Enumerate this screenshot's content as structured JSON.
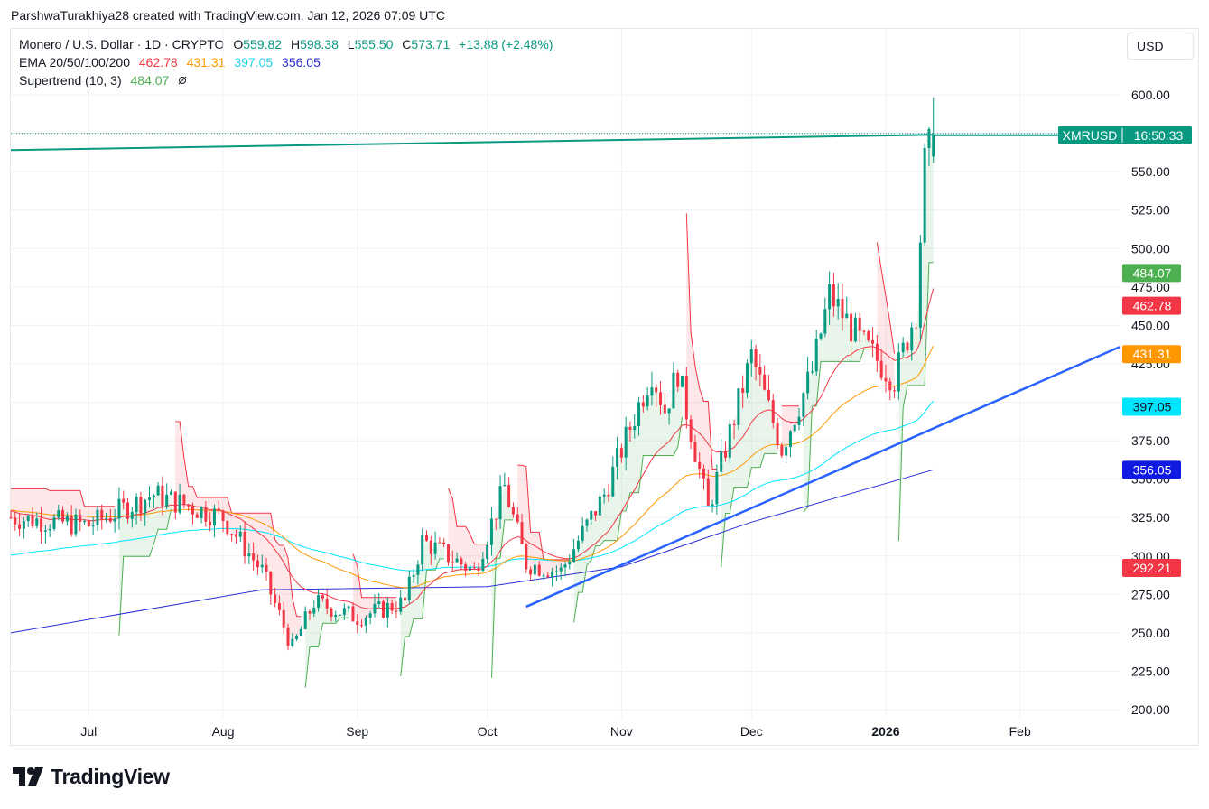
{
  "caption": "ParshwaTurakhiya28 created with TradingView.com, Jan 12, 2026 07:09 UTC",
  "currency_button": "USD",
  "legend": {
    "symbol": "Monero / U.S. Dollar · 1D · CRYPTO",
    "o_label": "O",
    "o_value": "559.82",
    "h_label": "H",
    "h_value": "598.38",
    "l_label": "L",
    "l_value": "555.50",
    "c_label": "C",
    "c_value": "573.71",
    "change": "+13.88 (+2.48%)",
    "ema_label": "EMA 20/50/100/200",
    "ema20": "462.78",
    "ema50": "431.31",
    "ema100": "397.05",
    "ema200": "356.05",
    "supertrend_label": "Supertrend (10, 3)",
    "supertrend_value": "484.07",
    "supertrend_icon": "hidden-eye-icon"
  },
  "brand": {
    "name": "TradingView",
    "icon": "tradingview-logo-icon"
  },
  "colors": {
    "up": "#089981",
    "down": "#f23645",
    "ema20": "#f23645",
    "ema50": "#ff9800",
    "ema100": "#00e5ff",
    "ema200": "#2a2ed8",
    "supertrend_up": "#4caf50",
    "supertrend_down": "#f23645",
    "trendline": "#2962ff",
    "price_line": "#089981"
  },
  "chart_data": {
    "type": "candlestick",
    "symbol": "XMRUSD",
    "price_tag": {
      "symbol": "XMRUSD",
      "countdown": "16:50:33"
    },
    "x_ticks": [
      "Jul",
      "Aug",
      "Sep",
      "Oct",
      "Nov",
      "Dec",
      "2026",
      "Feb"
    ],
    "y_ticks": [
      "200.00",
      "225.00",
      "250.00",
      "275.00",
      "300.00",
      "325.00",
      "350.00",
      "375.00",
      "400.00",
      "425.00",
      "450.00",
      "475.00",
      "500.00",
      "525.00",
      "550.00",
      "575.00",
      "600.00"
    ],
    "ylim": [
      200,
      600
    ],
    "x_range": [
      "2025-06-13",
      "2026-02-24"
    ],
    "last_date": "2026-01-12",
    "last_ohlc": {
      "open": 559.82,
      "high": 598.38,
      "low": 555.5,
      "close": 573.71
    },
    "badges": [
      {
        "label": "484.07",
        "value": 484.07,
        "color": "#4caf50"
      },
      {
        "label": "462.78",
        "value": 462.78,
        "color": "#f23645"
      },
      {
        "label": "431.31",
        "value": 431.31,
        "color": "#ff9800"
      },
      {
        "label": "397.05",
        "value": 397.05,
        "color": "#00e5ff"
      },
      {
        "label": "356.05",
        "value": 356.05,
        "color": "#0f1be0"
      },
      {
        "label": "292.21",
        "value": 292.21,
        "color": "#f23645"
      }
    ],
    "key_closes": [
      {
        "date": "2025-06-13",
        "value": 325
      },
      {
        "date": "2025-07-01",
        "value": 320
      },
      {
        "date": "2025-07-16",
        "value": 340
      },
      {
        "date": "2025-08-01",
        "value": 325
      },
      {
        "date": "2025-08-10",
        "value": 290
      },
      {
        "date": "2025-08-17",
        "value": 240
      },
      {
        "date": "2025-08-22",
        "value": 270
      },
      {
        "date": "2025-09-01",
        "value": 260
      },
      {
        "date": "2025-09-12",
        "value": 270
      },
      {
        "date": "2025-09-16",
        "value": 310
      },
      {
        "date": "2025-09-28",
        "value": 290
      },
      {
        "date": "2025-10-05",
        "value": 345
      },
      {
        "date": "2025-10-10",
        "value": 295
      },
      {
        "date": "2025-10-18",
        "value": 290
      },
      {
        "date": "2025-10-28",
        "value": 340
      },
      {
        "date": "2025-11-08",
        "value": 420
      },
      {
        "date": "2025-11-11",
        "value": 395
      },
      {
        "date": "2025-11-14",
        "value": 420
      },
      {
        "date": "2025-11-21",
        "value": 330
      },
      {
        "date": "2025-12-01",
        "value": 430
      },
      {
        "date": "2025-12-08",
        "value": 370
      },
      {
        "date": "2025-12-15",
        "value": 420
      },
      {
        "date": "2025-12-19",
        "value": 470
      },
      {
        "date": "2025-12-26",
        "value": 440
      },
      {
        "date": "2026-01-03",
        "value": 415
      },
      {
        "date": "2026-01-08",
        "value": 460
      },
      {
        "date": "2026-01-10",
        "value": 555
      },
      {
        "date": "2026-01-12",
        "value": 573.71
      }
    ],
    "ema200_points": [
      {
        "date": "2025-06-13",
        "value": 250
      },
      {
        "date": "2025-08-10",
        "value": 278
      },
      {
        "date": "2025-10-01",
        "value": 280
      },
      {
        "date": "2025-11-01",
        "value": 293
      },
      {
        "date": "2025-12-01",
        "value": 322
      },
      {
        "date": "2026-01-12",
        "value": 356.05
      }
    ],
    "trendline": [
      {
        "date": "2025-10-10",
        "value": 267
      },
      {
        "date": "2026-02-24",
        "value": 436
      }
    ],
    "resistance_line": [
      {
        "date": "2025-06-13",
        "value": 564
      },
      {
        "date": "2026-01-12",
        "value": 574
      }
    ]
  }
}
